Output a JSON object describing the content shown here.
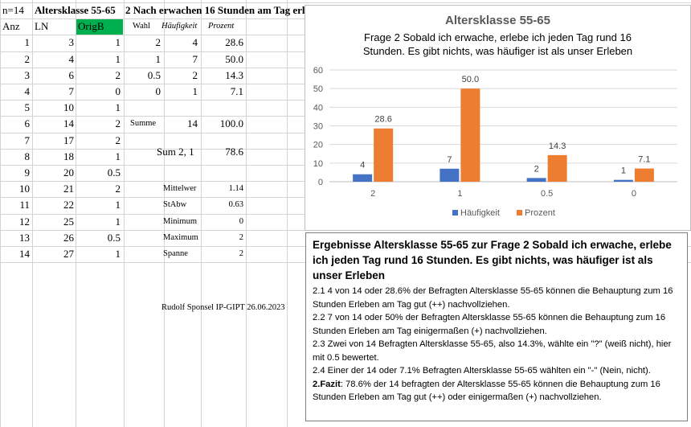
{
  "sheet": {
    "n_label": "n=14",
    "title1": "Altersklasse 55-65",
    "title2": "2 Nach erwachen 16 Stunden am Tag erle",
    "col_anz": "Anz",
    "col_ln": "LN",
    "col_origb": "OrigB",
    "col_wahl": "Wahl",
    "col_haeufigkeit": "Häufigkeit",
    "col_prozent": "Prozent",
    "rows": [
      {
        "anz": "1",
        "ln": "3",
        "origb": "1"
      },
      {
        "anz": "2",
        "ln": "4",
        "origb": "1"
      },
      {
        "anz": "3",
        "ln": "6",
        "origb": "2"
      },
      {
        "anz": "4",
        "ln": "7",
        "origb": "0"
      },
      {
        "anz": "5",
        "ln": "10",
        "origb": "1"
      },
      {
        "anz": "6",
        "ln": "14",
        "origb": "2"
      },
      {
        "anz": "7",
        "ln": "17",
        "origb": "2"
      },
      {
        "anz": "8",
        "ln": "18",
        "origb": "1"
      },
      {
        "anz": "9",
        "ln": "20",
        "origb": "0.5"
      },
      {
        "anz": "10",
        "ln": "21",
        "origb": "2"
      },
      {
        "anz": "11",
        "ln": "22",
        "origb": "1"
      },
      {
        "anz": "12",
        "ln": "25",
        "origb": "1"
      },
      {
        "anz": "13",
        "ln": "26",
        "origb": "0.5"
      },
      {
        "anz": "14",
        "ln": "27",
        "origb": "1"
      }
    ],
    "freq": [
      {
        "wahl": "2",
        "h": "4",
        "p": "28.6"
      },
      {
        "wahl": "1",
        "h": "7",
        "p": "50.0"
      },
      {
        "wahl": "0.5",
        "h": "2",
        "p": "14.3"
      },
      {
        "wahl": "0",
        "h": "1",
        "p": "7.1"
      }
    ],
    "summe_label": "Summe",
    "summe_h": "14",
    "summe_p": "100.0",
    "sum21_label": "Sum 2, 1",
    "sum21_value": "78.6",
    "stats": [
      {
        "label": "Mittelwer",
        "value": "1.14"
      },
      {
        "label": "StAbw",
        "value": "0.63"
      },
      {
        "label": "Minimum",
        "value": "0"
      },
      {
        "label": "Maximum",
        "value": "2"
      },
      {
        "label": "Spanne",
        "value": "2"
      }
    ],
    "author": "Rudolf Sponsel IP-GIPT 26.06.2023"
  },
  "chart_data": {
    "type": "bar",
    "title": "Altersklasse 55-65",
    "subtitle_line1": "Frage 2  Sobald ich erwache, erlebe ich jeden Tag rund 16",
    "subtitle_line2": "Stunden. Es gibt nichts, was häufiger ist als unser Erleben",
    "categories": [
      "2",
      "1",
      "0.5",
      "0"
    ],
    "series": [
      {
        "name": "Häufigkeit",
        "values": [
          4,
          7,
          2,
          1
        ],
        "labels": [
          "4",
          "7",
          "2",
          "1"
        ],
        "color": "#4472c4"
      },
      {
        "name": "Prozent",
        "values": [
          28.6,
          50.0,
          14.3,
          7.1
        ],
        "labels": [
          "28.6",
          "50.0",
          "14.3",
          "7.1"
        ],
        "color": "#ed7d31"
      }
    ],
    "yticks": [
      "0",
      "10",
      "20",
      "30",
      "40",
      "50",
      "60"
    ],
    "ylim": [
      0,
      60
    ],
    "grid": true,
    "legend": "bottom"
  },
  "results": {
    "heading": "Ergebnisse Altersklasse 55-65 zur Frage 2 Sobald ich erwache, erlebe ich jeden Tag rund 16 Stunden. Es gibt nichts, was häufiger ist als unser Erleben",
    "p1": "2.1   4 von  14 oder 28.6% der Befragten Altersklasse 55-65  können die Behauptung zum 16 Stunden Erleben am Tag gut  (++) nachvollziehen.",
    "p2": "2.2   7 von 14 oder 50% der Befragten Altersklasse 55-65 können die Behauptung zum 16 Stunden Erleben am Tag einigermaßen (+) nachvollziehen.",
    "p3": "2.3   Zwei von 14 Befragten Altersklasse 55-65, also 14.3%, wählte ein \"?\" (weiß nicht), hier mit 0.5 bewertet.",
    "p4": "2.4  Einer der 14 oder 7.1% Befragten Altersklasse 55-65 wählten ein \"-\" (Nein, nicht).",
    "fazit_label": "2.Fazit",
    "fazit_text": ": 78.6% der 14 befragten der Altersklasse 55-65 können die Behauptung zum 16 Stunden Erleben am Tag gut  (++) oder einigermaßen (+) nachvollziehen."
  }
}
